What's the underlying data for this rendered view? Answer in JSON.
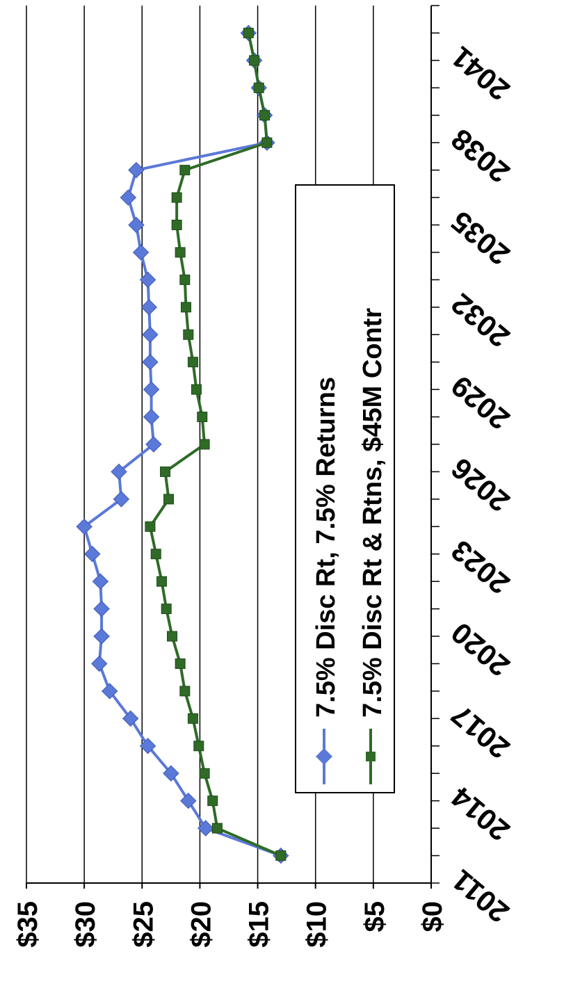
{
  "chart_data": {
    "type": "line",
    "title": "",
    "xlabel": "",
    "ylabel": "",
    "ylim": [
      0,
      35
    ],
    "xlim": [
      2011,
      2043
    ],
    "y_tick_labels": [
      "$0",
      "$5",
      "$10",
      "$15",
      "$20",
      "$25",
      "$30",
      "$35"
    ],
    "y_tick_values": [
      0,
      5,
      10,
      15,
      20,
      25,
      30,
      35
    ],
    "x_tick_labels": [
      "2011",
      "2014",
      "2017",
      "2020",
      "2023",
      "2026",
      "2029",
      "2032",
      "2035",
      "2038",
      "2041"
    ],
    "x_tick_values": [
      2011,
      2014,
      2017,
      2020,
      2023,
      2026,
      2029,
      2032,
      2035,
      2038,
      2041
    ],
    "grid": true,
    "legend_position": "center-right",
    "orientation": "rotated 90 degrees clockwise",
    "series": [
      {
        "name": "7.5% Disc Rt, 7.5% Returns",
        "color": "#5b79d8",
        "marker": "diamond",
        "x": [
          2012,
          2013,
          2014,
          2015,
          2016,
          2017,
          2018,
          2019,
          2020,
          2021,
          2022,
          2023,
          2024,
          2025,
          2026,
          2027,
          2028,
          2029,
          2030,
          2031,
          2032,
          2033,
          2034,
          2035,
          2036,
          2037,
          2038,
          2039,
          2040,
          2041,
          2042,
          2043
        ],
        "y": [
          13.0,
          19.5,
          21.0,
          22.5,
          24.5,
          26.0,
          27.8,
          28.7,
          28.5,
          28.5,
          28.6,
          29.3,
          30.0,
          26.8,
          27.0,
          24.0,
          24.2,
          24.2,
          24.3,
          24.3,
          24.4,
          24.5,
          25.1,
          25.5,
          26.2,
          25.5,
          14.2,
          14.4,
          14.9,
          15.3,
          15.8,
          null
        ]
      },
      {
        "name": "7.5% Disc Rt & Rtns, $45M Contr",
        "color": "#2f6b27",
        "marker": "square",
        "x": [
          2012,
          2013,
          2014,
          2015,
          2016,
          2017,
          2018,
          2019,
          2020,
          2021,
          2022,
          2023,
          2024,
          2025,
          2026,
          2027,
          2028,
          2029,
          2030,
          2031,
          2032,
          2033,
          2034,
          2035,
          2036,
          2037,
          2038,
          2039,
          2040,
          2041,
          2042,
          2043
        ],
        "y": [
          13.0,
          18.5,
          18.9,
          19.6,
          20.1,
          20.6,
          21.3,
          21.7,
          22.4,
          22.9,
          23.3,
          23.8,
          24.3,
          22.7,
          23.0,
          19.6,
          19.8,
          20.3,
          20.6,
          21.0,
          21.2,
          21.3,
          21.7,
          22.0,
          22.0,
          21.3,
          14.2,
          14.4,
          14.9,
          15.3,
          15.8,
          null
        ]
      }
    ]
  }
}
